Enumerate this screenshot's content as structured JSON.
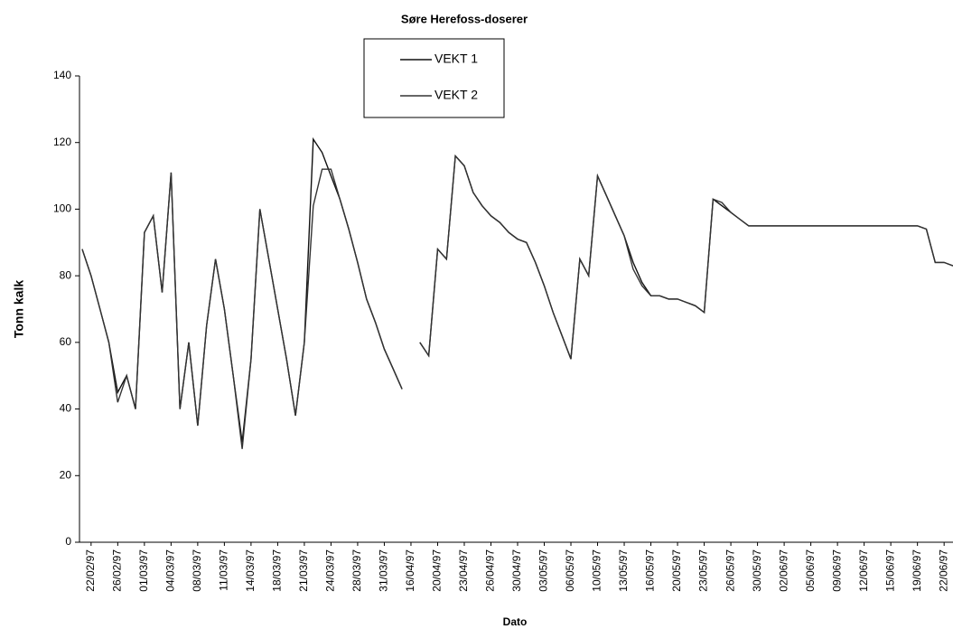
{
  "chart_data": {
    "type": "line",
    "title": "Søre Herefoss-doserer",
    "xlabel": "Dato",
    "ylabel": "Tonn kalk",
    "categories": [
      null,
      "22/02/97",
      null,
      null,
      "26/02/97",
      null,
      null,
      "01/03/97",
      null,
      null,
      "04/03/97",
      null,
      null,
      "08/03/97",
      null,
      null,
      "11/03/97",
      null,
      null,
      "14/03/97",
      null,
      null,
      "18/03/97",
      null,
      null,
      "21/03/97",
      null,
      null,
      "24/03/97",
      null,
      null,
      "28/03/97",
      null,
      null,
      "31/03/97",
      null,
      null,
      "16/04/97",
      null,
      null,
      "20/04/97",
      null,
      null,
      "23/04/97",
      null,
      null,
      "26/04/97",
      null,
      null,
      "30/04/97",
      null,
      null,
      "03/05/97",
      null,
      null,
      "06/05/97",
      null,
      null,
      "10/05/97",
      null,
      null,
      "13/05/97",
      null,
      null,
      "16/05/97",
      null,
      null,
      "20/05/97",
      null,
      null,
      "23/05/97",
      null,
      null,
      "26/05/97",
      null,
      null,
      "30/05/97",
      null,
      null,
      "02/06/97",
      null,
      null,
      "05/06/97",
      null,
      null,
      "09/06/97",
      null,
      null,
      "12/06/97",
      null,
      null,
      "15/06/97",
      null,
      null,
      "19/06/97",
      null,
      null,
      "22/06/97",
      null
    ],
    "series": [
      {
        "name": "VEKT 1",
        "color": "#111111",
        "values": [
          88,
          80,
          70,
          60,
          45,
          50,
          40,
          93,
          98,
          75,
          111,
          40,
          60,
          35,
          65,
          85,
          70,
          50,
          30,
          55,
          100,
          85,
          70,
          55,
          38,
          60,
          121,
          117,
          110,
          103,
          94,
          84,
          73,
          66,
          58,
          52,
          46,
          null,
          60,
          56,
          88,
          85,
          116,
          113,
          105,
          101,
          98,
          96,
          93,
          91,
          90,
          84,
          77,
          69,
          62,
          55,
          85,
          80,
          110,
          104,
          98,
          92,
          84,
          78,
          74,
          74,
          73,
          73,
          72,
          71,
          69,
          103,
          101,
          99,
          97,
          95,
          95,
          95,
          95,
          95,
          95,
          95,
          95,
          95,
          95,
          95,
          95,
          95,
          95,
          95,
          95,
          95,
          95,
          95,
          95,
          94,
          84,
          84,
          83
        ]
      },
      {
        "name": "VEKT 2",
        "color": "#333333",
        "values": [
          88,
          80,
          70,
          60,
          42,
          50,
          40,
          93,
          98,
          75,
          111,
          40,
          60,
          35,
          65,
          85,
          70,
          50,
          28,
          55,
          100,
          85,
          70,
          55,
          38,
          60,
          101,
          112,
          112,
          103,
          94,
          84,
          73,
          66,
          58,
          52,
          46,
          null,
          60,
          56,
          88,
          85,
          116,
          113,
          105,
          101,
          98,
          96,
          93,
          91,
          90,
          84,
          77,
          69,
          62,
          55,
          85,
          80,
          110,
          104,
          98,
          92,
          82,
          77,
          74,
          74,
          73,
          73,
          72,
          71,
          69,
          103,
          102,
          99,
          97,
          95,
          95,
          95,
          95,
          95,
          95,
          95,
          95,
          95,
          95,
          95,
          95,
          95,
          95,
          95,
          95,
          95,
          95,
          95,
          95,
          94,
          84,
          84,
          83
        ]
      }
    ],
    "ylim": [
      0,
      140
    ],
    "yticks": [
      0,
      20,
      40,
      60,
      80,
      100,
      120,
      140
    ]
  }
}
